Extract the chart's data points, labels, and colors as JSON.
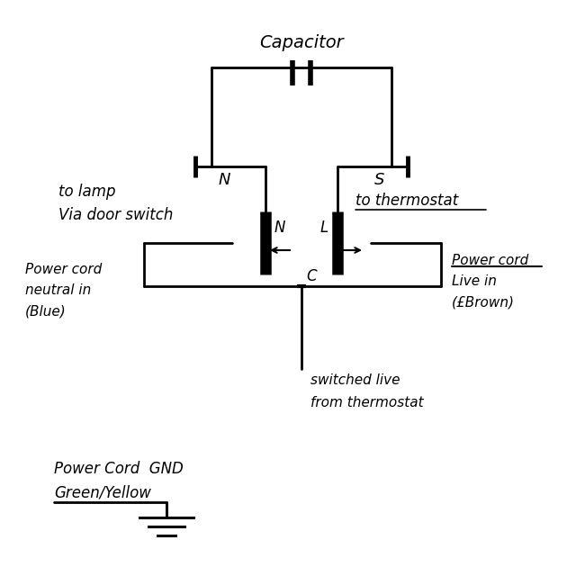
{
  "background_color": "#ffffff",
  "capacitor_label": "Capacitor",
  "N_label": "N",
  "S_label": "S",
  "L_label": "L",
  "C_label": "C",
  "to_lamp_text": "to lamp",
  "via_door_text": "Via door switch",
  "to_thermostat_text": "to thermostat",
  "power_cord_neutral_line1": "Power cord",
  "power_cord_neutral_line2": "neutral in",
  "power_cord_neutral_line3": "(Blue)",
  "power_cord_live_line1": "Power cord",
  "power_cord_live_line2": "Live in",
  "power_cord_live_line3": "(£Brown)",
  "switched_live_line1": "switched live",
  "switched_live_line2": "from thermostat",
  "gnd_label_text": "Power Cord  GND",
  "gnd_wire_text": "Green/Yellow"
}
